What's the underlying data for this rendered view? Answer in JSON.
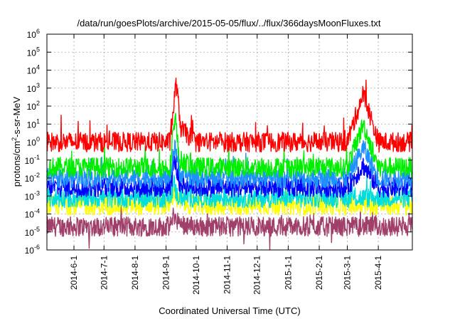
{
  "chart_data": {
    "type": "line",
    "title": "/data/run/goesPlots/archive/2015-05-05/flux/../flux/366daysMoonFluxes.txt",
    "xlabel": "Coordinated Universal Time (UTC)",
    "ylabel_parts": [
      "protons/cm",
      "2",
      "-s-sr-MeV"
    ],
    "x_range": [
      "2014-05-05",
      "2015-05-05"
    ],
    "x_ticks": [
      "2014-6-1",
      "2014-7-1",
      "2014-8-1",
      "2014-9-1",
      "2014-10-1",
      "2014-11-1",
      "2014-12-1",
      "2015-1-1",
      "2015-2-1",
      "2015-3-1",
      "2015-4-1"
    ],
    "y_scale": "log",
    "y_range": [
      1e-06,
      1000000.0
    ],
    "y_tick_exponents": [
      "-6",
      "-5",
      "-4",
      "-3",
      "-2",
      "-1",
      "0",
      "1",
      "2",
      "3",
      "4",
      "5",
      "6"
    ],
    "y_tick_base": "10",
    "grid": true,
    "legend": "none",
    "series": [
      {
        "color": "#a0406a",
        "baseline": 2e-05,
        "samples": [
          [
            "2014-05-05",
            2e-05
          ],
          [
            "2014-06-01",
            2e-05
          ],
          [
            "2014-07-01",
            2e-05
          ],
          [
            "2014-08-01",
            2e-05
          ],
          [
            "2014-09-05",
            2e-05
          ],
          [
            "2014-09-09",
            0.0001
          ],
          [
            "2014-09-12",
            3e-05
          ],
          [
            "2014-10-01",
            2e-05
          ],
          [
            "2014-11-01",
            2e-05
          ],
          [
            "2014-12-01",
            2e-05
          ],
          [
            "2015-01-01",
            2e-05
          ],
          [
            "2015-02-01",
            2e-05
          ],
          [
            "2015-03-01",
            2e-05
          ],
          [
            "2015-04-01",
            2e-05
          ],
          [
            "2015-05-05",
            2e-05
          ]
        ]
      },
      {
        "color": "#ffff00",
        "baseline": 0.0003,
        "samples": [
          [
            "2014-05-05",
            0.0003
          ],
          [
            "2014-06-01",
            0.0003
          ],
          [
            "2014-07-01",
            0.0003
          ],
          [
            "2014-08-01",
            0.0003
          ],
          [
            "2014-09-05",
            0.0003
          ],
          [
            "2014-09-09",
            0.002
          ],
          [
            "2014-09-12",
            0.0005
          ],
          [
            "2014-10-01",
            0.0003
          ],
          [
            "2014-11-01",
            0.0003
          ],
          [
            "2014-12-01",
            0.0003
          ],
          [
            "2015-01-01",
            0.0003
          ],
          [
            "2015-02-01",
            0.0003
          ],
          [
            "2015-03-01",
            0.0003
          ],
          [
            "2015-04-01",
            0.0003
          ],
          [
            "2015-05-05",
            0.0003
          ]
        ]
      },
      {
        "color": "#00dddd",
        "baseline": 0.0008,
        "samples": [
          [
            "2014-05-05",
            0.0008
          ],
          [
            "2014-06-01",
            0.0008
          ],
          [
            "2014-07-01",
            0.0008
          ],
          [
            "2014-08-01",
            0.0008
          ],
          [
            "2014-09-05",
            0.0008
          ],
          [
            "2014-09-09",
            0.005
          ],
          [
            "2014-09-12",
            0.001
          ],
          [
            "2014-10-01",
            0.0008
          ],
          [
            "2014-11-01",
            0.0008
          ],
          [
            "2014-12-01",
            0.0008
          ],
          [
            "2015-01-01",
            0.0008
          ],
          [
            "2015-02-01",
            0.0008
          ],
          [
            "2015-03-01",
            0.0008
          ],
          [
            "2015-04-01",
            0.0008
          ],
          [
            "2015-05-05",
            0.0008
          ]
        ]
      },
      {
        "color": "#0000ff",
        "baseline": 0.003,
        "samples": [
          [
            "2014-05-05",
            0.003
          ],
          [
            "2014-06-01",
            0.003
          ],
          [
            "2014-07-01",
            0.003
          ],
          [
            "2014-08-01",
            0.003
          ],
          [
            "2014-09-05",
            0.003
          ],
          [
            "2014-09-10",
            0.1
          ],
          [
            "2014-09-14",
            0.005
          ],
          [
            "2014-10-01",
            0.003
          ],
          [
            "2014-11-01",
            0.003
          ],
          [
            "2014-12-01",
            0.003
          ],
          [
            "2015-01-01",
            0.003
          ],
          [
            "2015-02-01",
            0.003
          ],
          [
            "2015-03-01",
            0.003
          ],
          [
            "2015-03-17",
            0.05
          ],
          [
            "2015-04-01",
            0.003
          ],
          [
            "2015-05-05",
            0.003
          ]
        ]
      },
      {
        "color": "#1e90ff",
        "baseline": 0.01,
        "samples": [
          [
            "2014-05-05",
            0.01
          ],
          [
            "2014-06-01",
            0.01
          ],
          [
            "2014-07-01",
            0.01
          ],
          [
            "2014-08-01",
            0.01
          ],
          [
            "2014-09-05",
            0.01
          ],
          [
            "2014-09-10",
            1
          ],
          [
            "2014-09-14",
            0.02
          ],
          [
            "2014-10-01",
            0.01
          ],
          [
            "2014-11-01",
            0.01
          ],
          [
            "2014-12-01",
            0.01
          ],
          [
            "2015-01-01",
            0.01
          ],
          [
            "2015-02-01",
            0.01
          ],
          [
            "2015-03-01",
            0.01
          ],
          [
            "2015-03-17",
            0.5
          ],
          [
            "2015-04-01",
            0.01
          ],
          [
            "2015-05-05",
            0.01
          ]
        ]
      },
      {
        "color": "#00ee00",
        "baseline": 0.04,
        "samples": [
          [
            "2014-05-05",
            0.04
          ],
          [
            "2014-06-01",
            0.04
          ],
          [
            "2014-07-01",
            0.04
          ],
          [
            "2014-08-01",
            0.04
          ],
          [
            "2014-09-05",
            0.04
          ],
          [
            "2014-09-10",
            40
          ],
          [
            "2014-09-14",
            0.1
          ],
          [
            "2014-10-01",
            0.04
          ],
          [
            "2014-11-01",
            0.04
          ],
          [
            "2014-12-01",
            0.04
          ],
          [
            "2015-01-01",
            0.04
          ],
          [
            "2015-02-01",
            0.04
          ],
          [
            "2015-03-01",
            0.04
          ],
          [
            "2015-03-17",
            10
          ],
          [
            "2015-04-01",
            0.04
          ],
          [
            "2015-05-05",
            0.04
          ]
        ]
      },
      {
        "color": "#ff0000",
        "baseline": 1,
        "samples": [
          [
            "2014-05-05",
            1
          ],
          [
            "2014-06-01",
            1
          ],
          [
            "2014-07-01",
            1
          ],
          [
            "2014-08-01",
            1
          ],
          [
            "2014-09-05",
            1
          ],
          [
            "2014-09-11",
            2000
          ],
          [
            "2014-09-16",
            5
          ],
          [
            "2014-10-01",
            1
          ],
          [
            "2014-11-01",
            1
          ],
          [
            "2014-12-01",
            1
          ],
          [
            "2015-01-01",
            1
          ],
          [
            "2015-02-01",
            1
          ],
          [
            "2015-03-01",
            1
          ],
          [
            "2015-03-17",
            500
          ],
          [
            "2015-04-01",
            1
          ],
          [
            "2015-05-05",
            1
          ]
        ]
      }
    ]
  }
}
